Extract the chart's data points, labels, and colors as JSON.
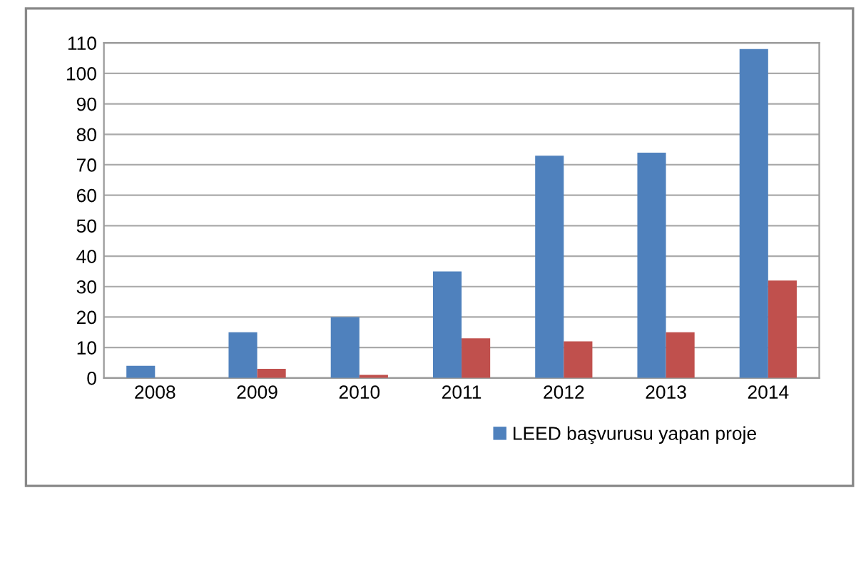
{
  "chart_data": {
    "type": "bar",
    "categories": [
      "2008",
      "2009",
      "2010",
      "2011",
      "2012",
      "2013",
      "2014"
    ],
    "series": [
      {
        "name": "LEED başvurusu yapan proje",
        "color": "#4f81bd",
        "values": [
          4,
          15,
          20,
          35,
          73,
          74,
          108
        ]
      },
      {
        "color": "#c0504d",
        "values": [
          0,
          3,
          1,
          13,
          12,
          15,
          32
        ]
      }
    ],
    "ylim": [
      0,
      110
    ],
    "yticks": [
      0,
      10,
      20,
      30,
      40,
      50,
      60,
      70,
      80,
      90,
      100,
      110
    ],
    "grid": "y",
    "legend": "bottom right"
  }
}
